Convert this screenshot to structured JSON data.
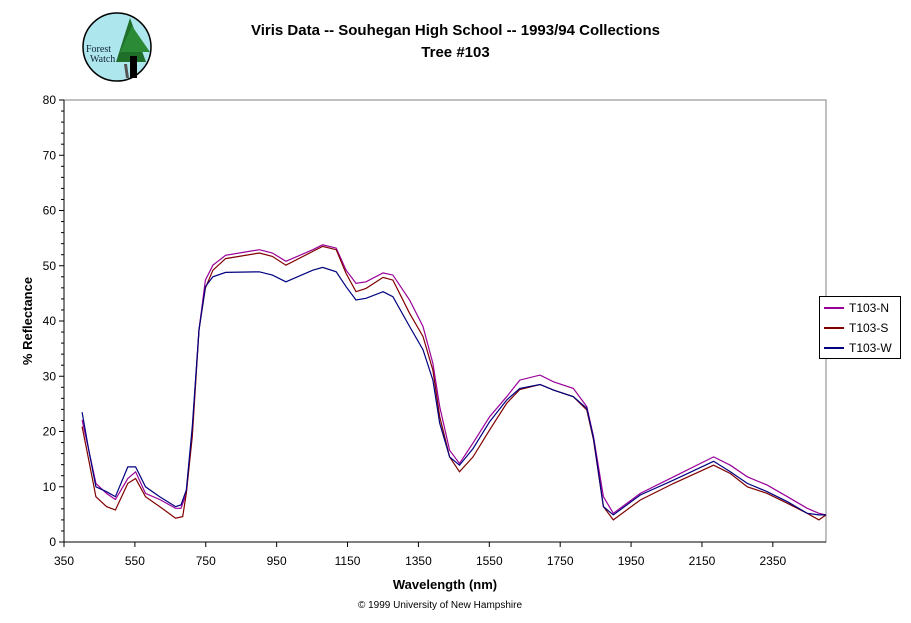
{
  "logo": {
    "text": "Forest Watch"
  },
  "title": "Viris Data -- Souhegan High School -- 1993/94 Collections",
  "subtitle": "Tree #103",
  "copyright": "© 1999 University of New Hampshire",
  "chart_data": {
    "type": "line",
    "title": "Viris Data -- Souhegan High School -- 1993/94 Collections",
    "subtitle": "Tree #103",
    "xlabel": "Wavelength (nm)",
    "ylabel": "% Reflectance",
    "xlim": [
      350,
      2500
    ],
    "ylim": [
      0,
      80
    ],
    "xticks": [
      350,
      550,
      750,
      950,
      1150,
      1350,
      1550,
      1750,
      1950,
      2150,
      2350
    ],
    "yticks": [
      0,
      10,
      20,
      30,
      40,
      50,
      60,
      70,
      80
    ],
    "grid": false,
    "legend_position": "right",
    "series": [
      {
        "name": "T103-N",
        "color": "#990099",
        "x": [
          401,
          420,
          440,
          470,
          495,
          530,
          552,
          580,
          620,
          665,
          680,
          695,
          712,
          731,
          749,
          770,
          806,
          901,
          938,
          976,
          1052,
          1080,
          1118,
          1146,
          1174,
          1202,
          1250,
          1278,
          1325,
          1363,
          1391,
          1410,
          1438,
          1466,
          1504,
          1551,
          1599,
          1636,
          1693,
          1731,
          1787,
          1825,
          1844,
          1872,
          1900,
          1976,
          2070,
          2183,
          2230,
          2278,
          2334,
          2391,
          2447,
          2480,
          2500
        ],
        "y": [
          22.1,
          16.6,
          10.6,
          8.8,
          7.7,
          11.5,
          12.7,
          8.8,
          7.7,
          6.1,
          6.1,
          8.8,
          20.3,
          38.4,
          47.4,
          50.1,
          51.9,
          52.9,
          52.3,
          50.8,
          52.9,
          53.8,
          53.2,
          49.2,
          46.8,
          47.1,
          48.7,
          48.3,
          43.8,
          39.0,
          32.3,
          24.5,
          16.6,
          14.2,
          17.9,
          22.7,
          26.3,
          29.3,
          30.2,
          29.0,
          27.8,
          24.5,
          19.1,
          8.2,
          5.2,
          8.8,
          11.8,
          15.4,
          13.9,
          11.8,
          10.3,
          8.2,
          6.1,
          5.2,
          4.9
        ]
      },
      {
        "name": "T103-S",
        "color": "#800000",
        "x": [
          401,
          420,
          440,
          470,
          495,
          530,
          552,
          580,
          620,
          665,
          685,
          695,
          712,
          731,
          749,
          770,
          806,
          901,
          938,
          976,
          1052,
          1080,
          1118,
          1146,
          1174,
          1202,
          1250,
          1278,
          1325,
          1363,
          1391,
          1410,
          1438,
          1466,
          1504,
          1551,
          1599,
          1636,
          1693,
          1731,
          1787,
          1825,
          1844,
          1872,
          1900,
          1976,
          2070,
          2183,
          2230,
          2278,
          2334,
          2391,
          2447,
          2480,
          2500
        ],
        "y": [
          20.9,
          14.8,
          8.2,
          6.4,
          5.8,
          10.6,
          11.5,
          8.2,
          6.4,
          4.3,
          4.6,
          8.8,
          19.1,
          38.4,
          46.0,
          49.2,
          51.3,
          52.3,
          51.7,
          50.1,
          52.6,
          53.5,
          52.9,
          48.6,
          45.3,
          45.9,
          47.9,
          47.4,
          41.4,
          37.2,
          31.1,
          22.7,
          15.4,
          12.7,
          15.4,
          20.3,
          25.1,
          27.6,
          28.5,
          27.5,
          26.3,
          23.9,
          18.5,
          6.4,
          4.0,
          7.6,
          10.6,
          13.9,
          12.4,
          10.0,
          8.8,
          7.0,
          5.2,
          4.0,
          4.9
        ]
      },
      {
        "name": "T103-W",
        "color": "#000080",
        "x": [
          401,
          420,
          440,
          470,
          495,
          530,
          552,
          580,
          620,
          665,
          680,
          695,
          712,
          731,
          749,
          770,
          806,
          901,
          938,
          976,
          1052,
          1080,
          1118,
          1146,
          1174,
          1202,
          1250,
          1278,
          1325,
          1363,
          1391,
          1410,
          1438,
          1466,
          1504,
          1551,
          1599,
          1636,
          1693,
          1731,
          1787,
          1825,
          1844,
          1872,
          1900,
          1976,
          2070,
          2183,
          2230,
          2278,
          2334,
          2391,
          2447,
          2480,
          2500
        ],
        "y": [
          23.5,
          16.6,
          10.0,
          9.1,
          8.2,
          13.6,
          13.6,
          10.0,
          8.2,
          6.4,
          6.7,
          9.4,
          20.9,
          38.4,
          46.2,
          48.0,
          48.8,
          48.9,
          48.3,
          47.1,
          49.2,
          49.7,
          48.9,
          46.2,
          43.8,
          44.1,
          45.3,
          44.4,
          39.0,
          34.8,
          29.3,
          21.5,
          15.4,
          13.9,
          16.9,
          21.8,
          25.7,
          27.8,
          28.5,
          27.5,
          26.3,
          24.2,
          18.8,
          6.4,
          4.9,
          8.5,
          11.2,
          14.6,
          12.7,
          10.6,
          9.1,
          7.3,
          5.2,
          4.9,
          4.9
        ]
      }
    ]
  }
}
